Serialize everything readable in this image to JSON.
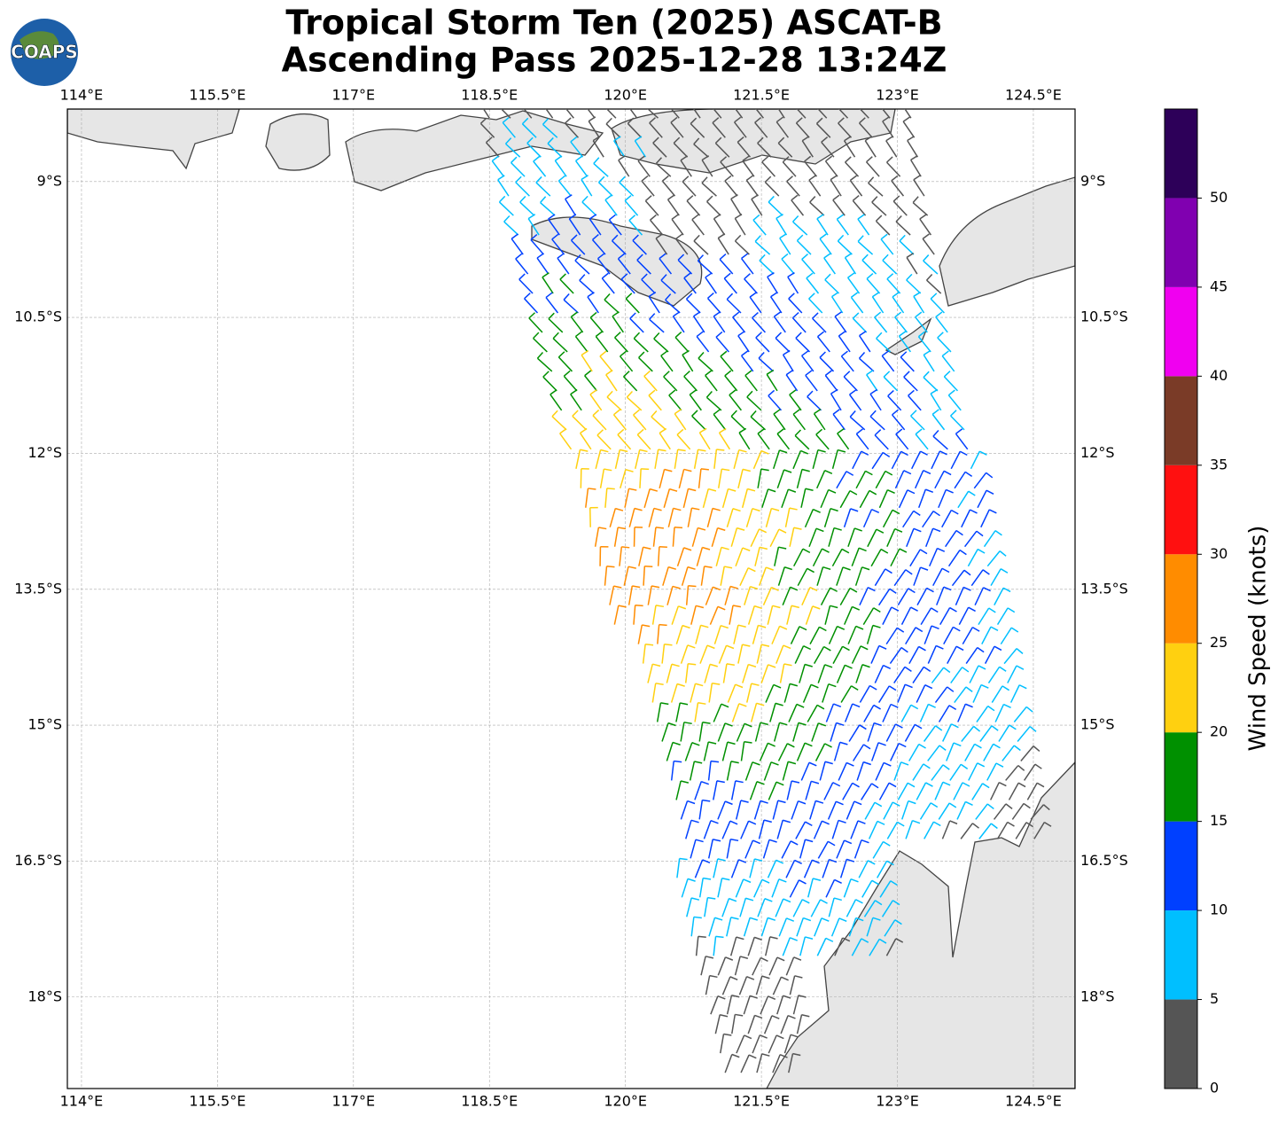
{
  "title_lines": [
    "Tropical Storm Ten (2025) ASCAT-B",
    "Ascending Pass 2025-12-28 13:24Z"
  ],
  "logo": "COAPS",
  "map": {
    "xlim": [
      113.844,
      124.96
    ],
    "ylim": [
      -19.01,
      -8.2
    ],
    "grid": true,
    "xticks": [
      {
        "value": 114,
        "label": "114°E"
      },
      {
        "value": 115.5,
        "label": "115.5°E"
      },
      {
        "value": 117,
        "label": "117°E"
      },
      {
        "value": 118.5,
        "label": "118.5°E"
      },
      {
        "value": 120,
        "label": "120°E"
      },
      {
        "value": 121.5,
        "label": "121.5°E"
      },
      {
        "value": 123,
        "label": "123°E"
      },
      {
        "value": 124.5,
        "label": "124.5°E"
      }
    ],
    "yticks": [
      {
        "value": -9,
        "label": "9°S"
      },
      {
        "value": -10.5,
        "label": "10.5°S"
      },
      {
        "value": -12,
        "label": "12°S"
      },
      {
        "value": -13.5,
        "label": "13.5°S"
      },
      {
        "value": -15,
        "label": "15°S"
      },
      {
        "value": -16.5,
        "label": "16.5°S"
      },
      {
        "value": -18,
        "label": "18°S"
      }
    ]
  },
  "colorbar": {
    "label": "Wind Speed (knots)",
    "lim": [
      0,
      55
    ],
    "ticks": [
      0,
      5,
      10,
      15,
      20,
      25,
      30,
      35,
      40,
      45,
      50
    ],
    "colors": [
      "#555555",
      "#00bfff",
      "#0040ff",
      "#009000",
      "#ffd010",
      "#ff8c00",
      "#ff1010",
      "#7a3b27",
      "#f000f0",
      "#8000b0",
      "#2d0059"
    ]
  }
}
